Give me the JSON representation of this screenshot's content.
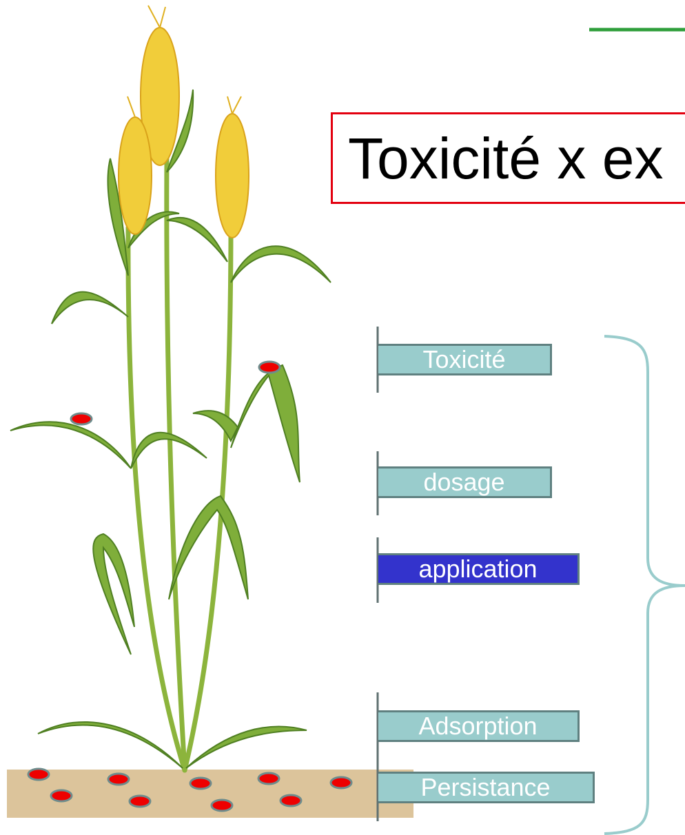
{
  "title": "Toxicité x ex",
  "labels": [
    "Toxicité",
    "dosage",
    "application",
    "Adsorption",
    "Persistance"
  ]
}
